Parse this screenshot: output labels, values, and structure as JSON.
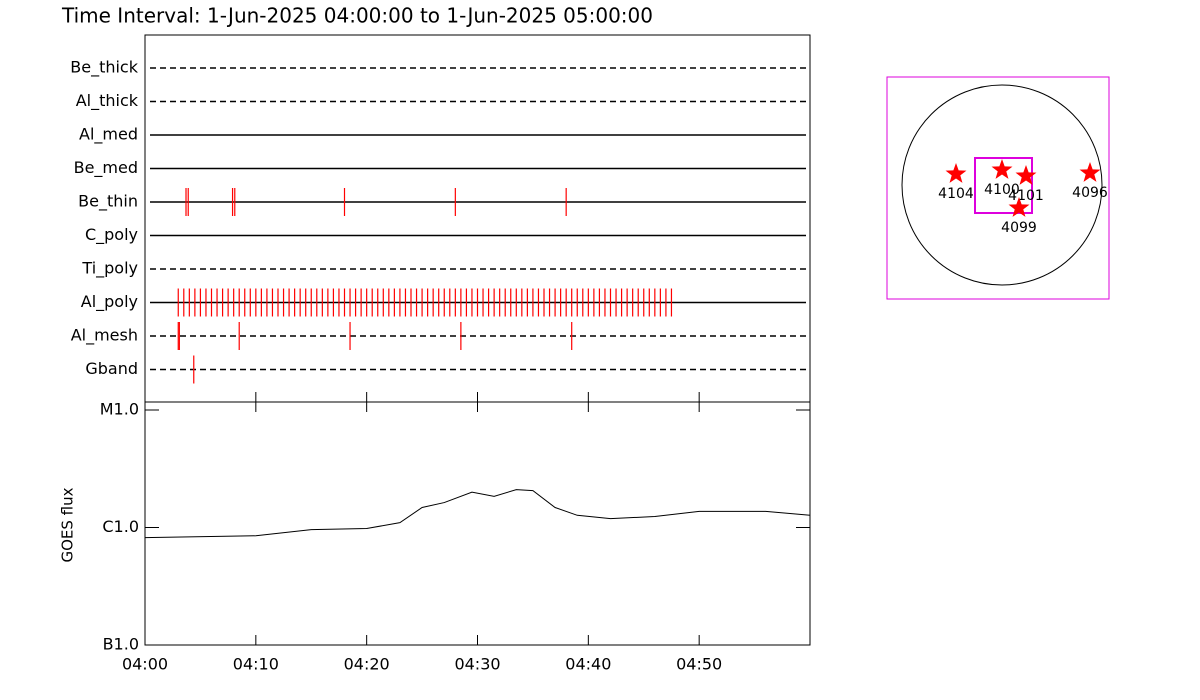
{
  "title": "Time Interval:  1-Jun-2025 04:00:00 to  1-Jun-2025 05:00:00",
  "chart_data": [
    {
      "type": "timeline",
      "color": "#ff0000",
      "xlim": [
        0,
        60
      ],
      "series": [
        {
          "name": "Be_thick",
          "style": "dashed",
          "times": []
        },
        {
          "name": "Al_thick",
          "style": "dashed",
          "times": []
        },
        {
          "name": "Al_med",
          "style": "solid",
          "times": []
        },
        {
          "name": "Be_med",
          "style": "solid",
          "times": []
        },
        {
          "name": "Be_thin",
          "style": "solid",
          "times": [
            3.7,
            3.9,
            7.9,
            8.1,
            18.0,
            28.0,
            38.0
          ]
        },
        {
          "name": "C_poly",
          "style": "solid",
          "times": []
        },
        {
          "name": "Ti_poly",
          "style": "dashed",
          "times": []
        },
        {
          "name": "Al_poly",
          "style": "solid",
          "times": [
            3,
            3.5,
            4,
            4.5,
            5,
            5.5,
            6,
            6.5,
            7,
            7.5,
            8,
            8.5,
            9,
            9.5,
            10,
            10.5,
            11,
            11.5,
            12,
            12.5,
            13,
            13.5,
            14,
            14.5,
            15,
            15.5,
            16,
            16.5,
            17,
            17.5,
            18,
            18.5,
            19,
            19.5,
            20,
            20.5,
            21,
            21.5,
            22,
            22.5,
            23,
            23.5,
            24,
            24.5,
            25,
            25.5,
            26,
            26.5,
            27,
            27.5,
            28,
            28.5,
            29,
            29.5,
            30,
            30.5,
            31,
            31.5,
            32,
            32.5,
            33,
            33.5,
            34,
            34.5,
            35,
            35.5,
            36,
            36.5,
            37,
            37.5,
            38,
            38.5,
            39,
            39.5,
            40,
            40.5,
            41,
            41.5,
            42,
            42.5,
            43,
            43.5,
            44,
            44.5,
            45,
            45.5,
            46,
            46.5,
            47,
            47.5
          ]
        },
        {
          "name": "Al_mesh",
          "style": "dashed",
          "times": [
            3.0,
            3.1,
            8.5,
            18.5,
            28.5,
            38.5
          ]
        },
        {
          "name": "Gband",
          "style": "dashed",
          "times": [
            4.4
          ]
        }
      ]
    },
    {
      "type": "line",
      "ylabel": "GOES flux",
      "log_y": true,
      "color": "#000000",
      "xlim": [
        0,
        60
      ],
      "ylim": [
        1e-07,
        1e-05
      ],
      "xticks": [
        {
          "value": 0,
          "label": "04:00"
        },
        {
          "value": 10,
          "label": "04:10"
        },
        {
          "value": 20,
          "label": "04:20"
        },
        {
          "value": 30,
          "label": "04:30"
        },
        {
          "value": 40,
          "label": "04:40"
        },
        {
          "value": 50,
          "label": "04:50"
        }
      ],
      "yticks": [
        {
          "value": 1e-07,
          "label": "B1.0"
        },
        {
          "value": 1e-06,
          "label": "C1.0"
        },
        {
          "value": 1e-05,
          "label": "M1.0"
        }
      ],
      "x": [
        0,
        10,
        15,
        20,
        23,
        25,
        27,
        29.5,
        31.5,
        33.5,
        35,
        37,
        39,
        42,
        46,
        50,
        56,
        60
      ],
      "values": [
        8.2e-07,
        8.5e-07,
        9.6e-07,
        9.8e-07,
        1.1e-06,
        1.48e-06,
        1.63e-06,
        2e-06,
        1.84e-06,
        2.1e-06,
        2.06e-06,
        1.48e-06,
        1.27e-06,
        1.19e-06,
        1.24e-06,
        1.37e-06,
        1.37e-06,
        1.27e-06
      ]
    },
    {
      "type": "map",
      "color": "#ff0000",
      "box_color": "#dd00dd",
      "fov": {
        "x": [
          -0.27,
          0.3
        ],
        "y": [
          -0.28,
          0.27
        ]
      },
      "regions": [
        {
          "label": "4104",
          "x": -0.46,
          "y": 0.11
        },
        {
          "label": "4100",
          "x": 0.0,
          "y": 0.15
        },
        {
          "label": "4101",
          "x": 0.24,
          "y": 0.09
        },
        {
          "label": "4099",
          "x": 0.17,
          "y": -0.23
        },
        {
          "label": "4096",
          "x": 0.88,
          "y": 0.12
        }
      ]
    }
  ]
}
